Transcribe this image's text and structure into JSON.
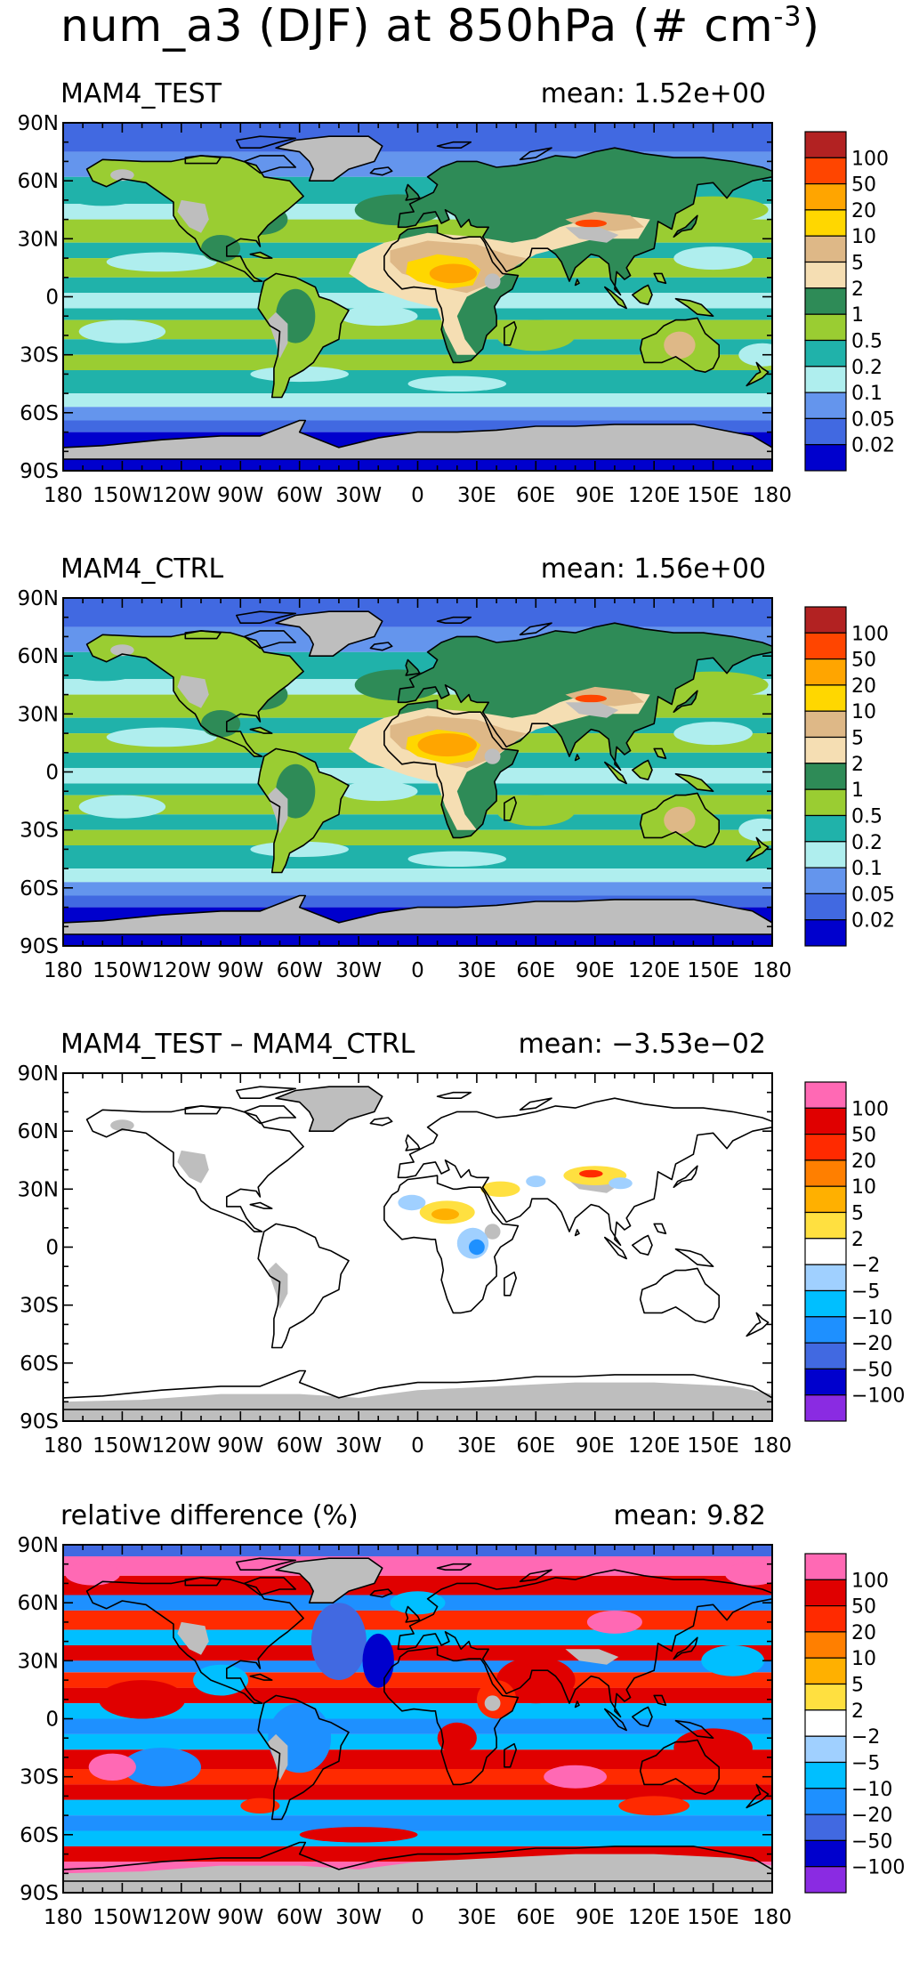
{
  "figure": {
    "title_main": "num_a3 (DJF) at 850hPa (# cm",
    "title_exp": "-3",
    "title_end": ")"
  },
  "chart_data": [
    {
      "type": "heatmap",
      "title": "MAM4_TEST",
      "mean_label": "mean:  1.52e+00",
      "mean_value": 1.52,
      "kind": "abs",
      "xticks": [
        "180",
        "150W",
        "120W",
        "90W",
        "60W",
        "30W",
        "0",
        "30E",
        "60E",
        "90E",
        "120E",
        "150E",
        "180"
      ],
      "yticks": [
        "90N",
        "60N",
        "30N",
        "0",
        "30S",
        "60S",
        "90S"
      ],
      "colorbar": {
        "labels": [
          "100",
          "50",
          "20",
          "10",
          "5",
          "2",
          "1",
          "0.5",
          "0.2",
          "0.1",
          "0.05",
          "0.02"
        ],
        "colors": [
          "#b22222",
          "#ff4500",
          "#ffa500",
          "#ffd700",
          "#deb887",
          "#f5deb3",
          "#2e8b57",
          "#9acd32",
          "#20b2aa",
          "#afeeee",
          "#6495ed",
          "#4169e1",
          "#0000cd"
        ]
      }
    },
    {
      "type": "heatmap",
      "title": "MAM4_CTRL",
      "mean_label": "mean:  1.56e+00",
      "mean_value": 1.56,
      "kind": "abs",
      "xticks": [
        "180",
        "150W",
        "120W",
        "90W",
        "60W",
        "30W",
        "0",
        "30E",
        "60E",
        "90E",
        "120E",
        "150E",
        "180"
      ],
      "yticks": [
        "90N",
        "60N",
        "30N",
        "0",
        "30S",
        "60S",
        "90S"
      ],
      "colorbar": {
        "labels": [
          "100",
          "50",
          "20",
          "10",
          "5",
          "2",
          "1",
          "0.5",
          "0.2",
          "0.1",
          "0.05",
          "0.02"
        ],
        "colors": [
          "#b22222",
          "#ff4500",
          "#ffa500",
          "#ffd700",
          "#deb887",
          "#f5deb3",
          "#2e8b57",
          "#9acd32",
          "#20b2aa",
          "#afeeee",
          "#6495ed",
          "#4169e1",
          "#0000cd"
        ]
      }
    },
    {
      "type": "heatmap",
      "title": "MAM4_TEST – MAM4_CTRL",
      "mean_label": "mean: −3.53e−02",
      "mean_value": -0.0353,
      "kind": "diff",
      "xticks": [
        "180",
        "150W",
        "120W",
        "90W",
        "60W",
        "30W",
        "0",
        "30E",
        "60E",
        "90E",
        "120E",
        "150E",
        "180"
      ],
      "yticks": [
        "90N",
        "60N",
        "30N",
        "0",
        "30S",
        "60S",
        "90S"
      ],
      "colorbar": {
        "labels": [
          "100",
          "50",
          "20",
          "10",
          "5",
          "2",
          "−2",
          "−5",
          "−10",
          "−20",
          "−50",
          "−100"
        ],
        "colors": [
          "#ff69b4",
          "#e00000",
          "#ff2a00",
          "#ff7f00",
          "#ffb000",
          "#ffe040",
          "#ffffff",
          "#a0d0ff",
          "#00bfff",
          "#1e90ff",
          "#4169e1",
          "#0000cd",
          "#8a2be2"
        ]
      }
    },
    {
      "type": "heatmap",
      "title": "relative difference (%)",
      "mean_label": "mean:   9.82",
      "mean_value": 9.82,
      "kind": "rel",
      "xticks": [
        "180",
        "150W",
        "120W",
        "90W",
        "60W",
        "30W",
        "0",
        "30E",
        "60E",
        "90E",
        "120E",
        "150E",
        "180"
      ],
      "yticks": [
        "90N",
        "60N",
        "30N",
        "0",
        "30S",
        "60S",
        "90S"
      ],
      "colorbar": {
        "labels": [
          "100",
          "50",
          "20",
          "10",
          "5",
          "2",
          "−2",
          "−5",
          "−10",
          "−20",
          "−50",
          "−100"
        ],
        "colors": [
          "#ff69b4",
          "#e00000",
          "#ff2a00",
          "#ff7f00",
          "#ffb000",
          "#ffe040",
          "#ffffff",
          "#a0d0ff",
          "#00bfff",
          "#1e90ff",
          "#4169e1",
          "#0000cd",
          "#8a2be2"
        ]
      }
    }
  ]
}
